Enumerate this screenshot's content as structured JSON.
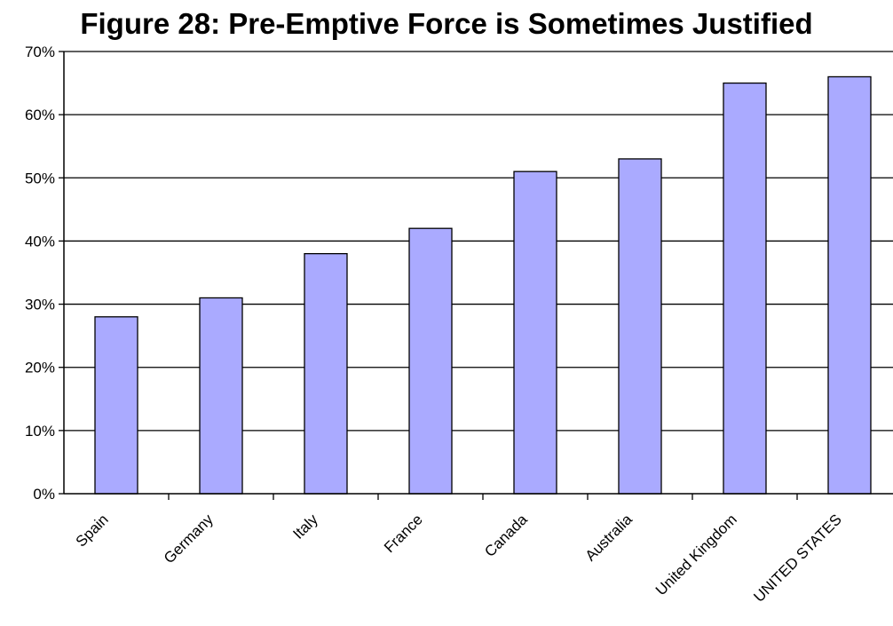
{
  "chart_data": {
    "type": "bar",
    "title": "Figure 28: Pre-Emptive Force is Sometimes Justified",
    "categories": [
      "Spain",
      "Germany",
      "Italy",
      "France",
      "Canada",
      "Australia",
      "United Kingdom",
      "UNITED STATES"
    ],
    "values": [
      28,
      31,
      38,
      42,
      51,
      53,
      65,
      66
    ],
    "yticks": [
      "0%",
      "10%",
      "20%",
      "30%",
      "40%",
      "50%",
      "60%",
      "70%"
    ],
    "ylim": [
      0,
      70
    ],
    "xlabel": "",
    "ylabel": "",
    "grid": true,
    "bar_color": "#aaaaff",
    "bar_edge": "#000000"
  }
}
